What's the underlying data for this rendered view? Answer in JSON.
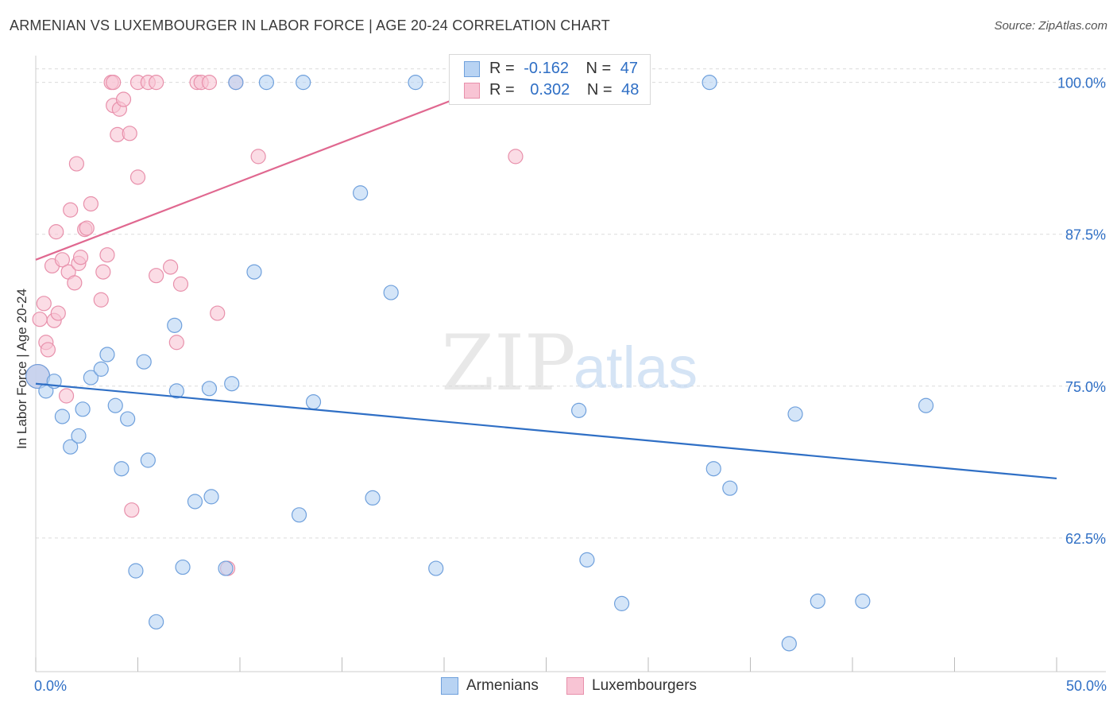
{
  "title": "ARMENIAN VS LUXEMBOURGER IN LABOR FORCE | AGE 20-24 CORRELATION CHART",
  "source": "Source: ZipAtlas.com",
  "watermark": {
    "zip": "ZIP",
    "atlas": "atlas"
  },
  "legend_top": {
    "armenians": {
      "r_label": "R =",
      "r_value": "-0.162",
      "n_label": "N =",
      "n_value": "47"
    },
    "luxembourgers": {
      "r_label": "R =",
      "r_value": "0.302",
      "n_label": "N =",
      "n_value": "48"
    }
  },
  "colors": {
    "armenians_fill": "#b8d3f3",
    "armenians_stroke": "#6fa0dc",
    "armenians_line": "#2f6fc5",
    "luxembourgers_fill": "#f8c4d4",
    "luxembourgers_stroke": "#e890ab",
    "luxembourgers_line": "#e06890",
    "axis_label": "#2f6fc5",
    "grid": "#dcdcdc"
  },
  "chart_data": {
    "type": "scatter",
    "title": "ARMENIAN VS LUXEMBOURGER IN LABOR FORCE | AGE 20-24 CORRELATION CHART",
    "xlabel": "",
    "ylabel": "In Labor Force | Age 20-24",
    "xlim": [
      0,
      50
    ],
    "ylim": [
      51.5,
      102.2
    ],
    "x_tick_labels": [
      "0.0%",
      "50.0%"
    ],
    "y_ticks": [
      62.5,
      75.0,
      87.5,
      100.0
    ],
    "y_tick_labels": [
      "62.5%",
      "75.0%",
      "87.5%",
      "100.0%"
    ],
    "grid": "horizontal dashed",
    "legend_position": "bottom-center",
    "series": [
      {
        "name": "Armenians",
        "trend": {
          "x": [
            0,
            50
          ],
          "y": [
            75.2,
            67.4
          ]
        },
        "points": [
          [
            0.1,
            75.8
          ],
          [
            0.5,
            74.6
          ],
          [
            0.9,
            75.4
          ],
          [
            1.3,
            72.5
          ],
          [
            1.7,
            70.0
          ],
          [
            2.1,
            70.9
          ],
          [
            2.3,
            73.1
          ],
          [
            2.7,
            75.7
          ],
          [
            3.2,
            76.4
          ],
          [
            3.5,
            77.6
          ],
          [
            3.9,
            73.4
          ],
          [
            4.2,
            68.2
          ],
          [
            4.5,
            72.3
          ],
          [
            4.9,
            59.8
          ],
          [
            5.3,
            77.0
          ],
          [
            5.5,
            68.9
          ],
          [
            5.9,
            55.6
          ],
          [
            6.8,
            80.0
          ],
          [
            6.9,
            74.6
          ],
          [
            7.2,
            60.1
          ],
          [
            7.8,
            65.5
          ],
          [
            8.5,
            74.8
          ],
          [
            8.6,
            65.9
          ],
          [
            9.3,
            60.0
          ],
          [
            9.6,
            75.2
          ],
          [
            9.8,
            100.0
          ],
          [
            10.7,
            84.4
          ],
          [
            11.3,
            100.0
          ],
          [
            12.9,
            64.4
          ],
          [
            13.1,
            100.0
          ],
          [
            13.6,
            73.7
          ],
          [
            15.9,
            90.9
          ],
          [
            16.5,
            65.8
          ],
          [
            17.4,
            82.7
          ],
          [
            18.6,
            100.0
          ],
          [
            19.6,
            60.0
          ],
          [
            26.6,
            73.0
          ],
          [
            27.0,
            60.7
          ],
          [
            28.7,
            57.1
          ],
          [
            33.0,
            100.0
          ],
          [
            33.2,
            68.2
          ],
          [
            34.0,
            66.6
          ],
          [
            36.9,
            53.8
          ],
          [
            37.2,
            72.7
          ],
          [
            38.3,
            57.3
          ],
          [
            40.5,
            57.3
          ],
          [
            43.6,
            73.4
          ]
        ]
      },
      {
        "name": "Luxembourgers",
        "trend": {
          "x": [
            0,
            25
          ],
          "y": [
            85.4,
            101.5
          ]
        },
        "points": [
          [
            0.1,
            75.8
          ],
          [
            0.2,
            80.5
          ],
          [
            0.4,
            81.8
          ],
          [
            0.5,
            78.6
          ],
          [
            0.6,
            78.0
          ],
          [
            0.8,
            84.9
          ],
          [
            0.9,
            80.4
          ],
          [
            1.0,
            87.7
          ],
          [
            1.1,
            81.0
          ],
          [
            1.3,
            85.4
          ],
          [
            1.5,
            74.2
          ],
          [
            1.6,
            84.4
          ],
          [
            1.7,
            89.5
          ],
          [
            1.9,
            83.5
          ],
          [
            2.0,
            93.3
          ],
          [
            2.1,
            85.1
          ],
          [
            2.2,
            85.6
          ],
          [
            2.4,
            87.9
          ],
          [
            2.5,
            88.0
          ],
          [
            2.7,
            90.0
          ],
          [
            3.2,
            82.1
          ],
          [
            3.3,
            84.4
          ],
          [
            3.5,
            85.8
          ],
          [
            3.7,
            100.0
          ],
          [
            3.8,
            100.0
          ],
          [
            3.8,
            98.1
          ],
          [
            4.0,
            95.7
          ],
          [
            4.1,
            97.8
          ],
          [
            4.3,
            98.6
          ],
          [
            4.6,
            95.8
          ],
          [
            4.7,
            64.8
          ],
          [
            5.0,
            100.0
          ],
          [
            5.0,
            92.2
          ],
          [
            5.5,
            100.0
          ],
          [
            5.9,
            100.0
          ],
          [
            5.9,
            84.1
          ],
          [
            6.6,
            84.8
          ],
          [
            6.9,
            78.6
          ],
          [
            7.1,
            83.4
          ],
          [
            7.9,
            100.0
          ],
          [
            8.1,
            100.0
          ],
          [
            8.5,
            100.0
          ],
          [
            8.9,
            81.0
          ],
          [
            9.4,
            60.0
          ],
          [
            9.8,
            100.0
          ],
          [
            10.9,
            93.9
          ],
          [
            23.5,
            93.9
          ],
          [
            24.9,
            100.0
          ]
        ]
      }
    ]
  },
  "legend_bottom": [
    "Armenians",
    "Luxembourgers"
  ]
}
